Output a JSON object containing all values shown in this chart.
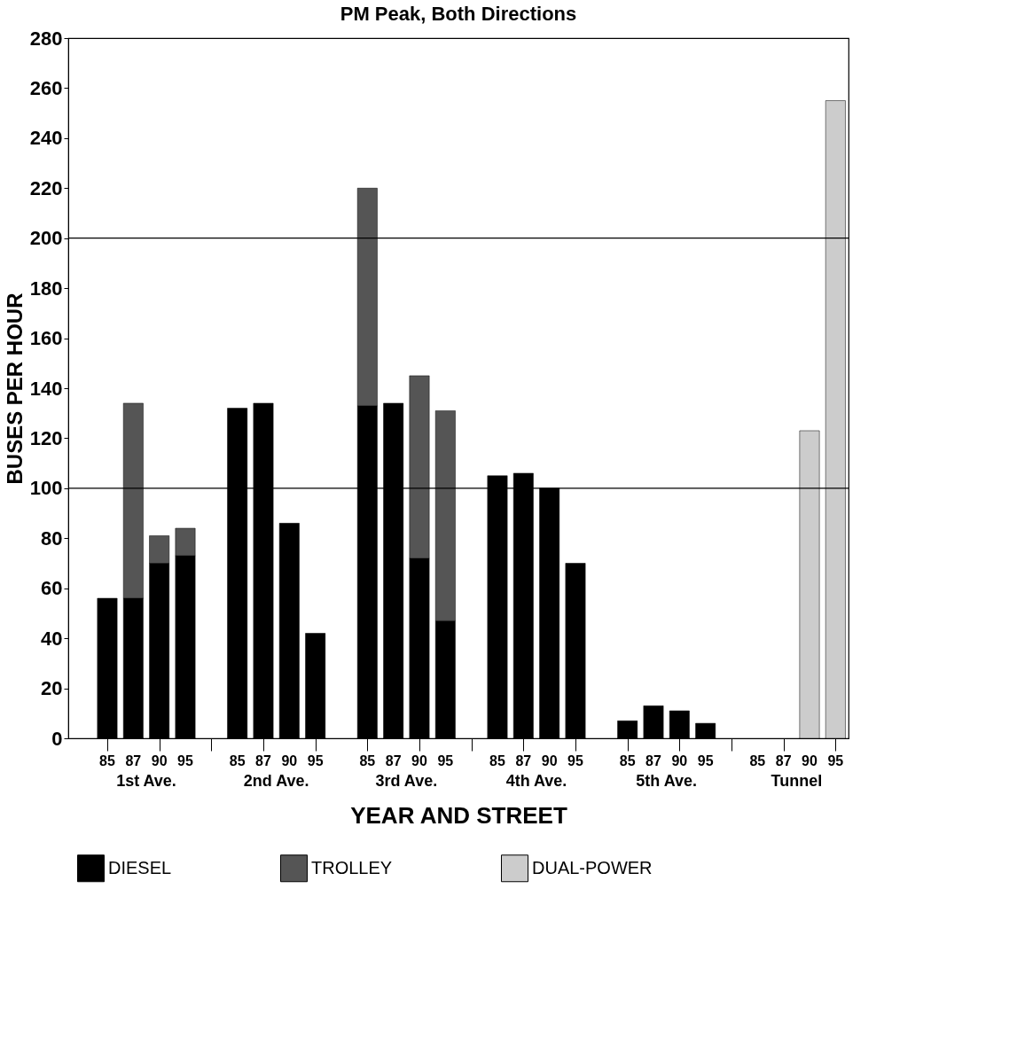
{
  "chart_data": {
    "type": "bar",
    "title": "PM Peak, Both Directions",
    "xlabel": "YEAR AND STREET",
    "ylabel": "BUSES PER HOUR",
    "categories": [
      "85",
      "87",
      "90",
      "95",
      null,
      "85",
      "87",
      "90",
      "95",
      null,
      "85",
      "87",
      "90",
      "95",
      null,
      "85",
      "87",
      "90",
      "95",
      null,
      "85",
      "87",
      "90",
      "95",
      null,
      "85",
      "87",
      "90",
      "95"
    ],
    "stacked": true,
    "series": [
      {
        "name": "DIESEL",
        "color": "#000000",
        "values": [
          56,
          56,
          70,
          73,
          null,
          132,
          134,
          86,
          42,
          null,
          133,
          134,
          72,
          47,
          null,
          105,
          106,
          100,
          70,
          null,
          7,
          13,
          11,
          6,
          null,
          null,
          null,
          null,
          null
        ]
      },
      {
        "name": "TROLLEY",
        "color": "#555555",
        "values": [
          null,
          78,
          11,
          11,
          null,
          null,
          null,
          null,
          null,
          null,
          87,
          null,
          73,
          84,
          null,
          null,
          null,
          null,
          null,
          null,
          null,
          null,
          null,
          null,
          null,
          null,
          null,
          null,
          null
        ]
      },
      {
        "name": "DUAL-POWER",
        "color": "#cccccc",
        "values": [
          null,
          null,
          null,
          null,
          null,
          null,
          null,
          null,
          null,
          null,
          null,
          null,
          null,
          null,
          null,
          null,
          null,
          null,
          null,
          null,
          null,
          null,
          null,
          null,
          null,
          null,
          null,
          123,
          255
        ]
      }
    ],
    "annotations": [
      "1st Ave.",
      "2nd Ave.",
      "3rd Ave.",
      "4th Ave.",
      "5th Ave.",
      "Tunnel"
    ],
    "ylim": [
      0,
      280
    ],
    "yticks": [
      0,
      20,
      40,
      60,
      80,
      100,
      120,
      140,
      160,
      180,
      200,
      220,
      240,
      260,
      280
    ],
    "ref_lines": [
      {
        "axis": "y",
        "value": 100,
        "color": "#000000"
      },
      {
        "axis": "y",
        "value": 200,
        "color": "#000000"
      }
    ],
    "grid": false,
    "legend": "bottom"
  }
}
